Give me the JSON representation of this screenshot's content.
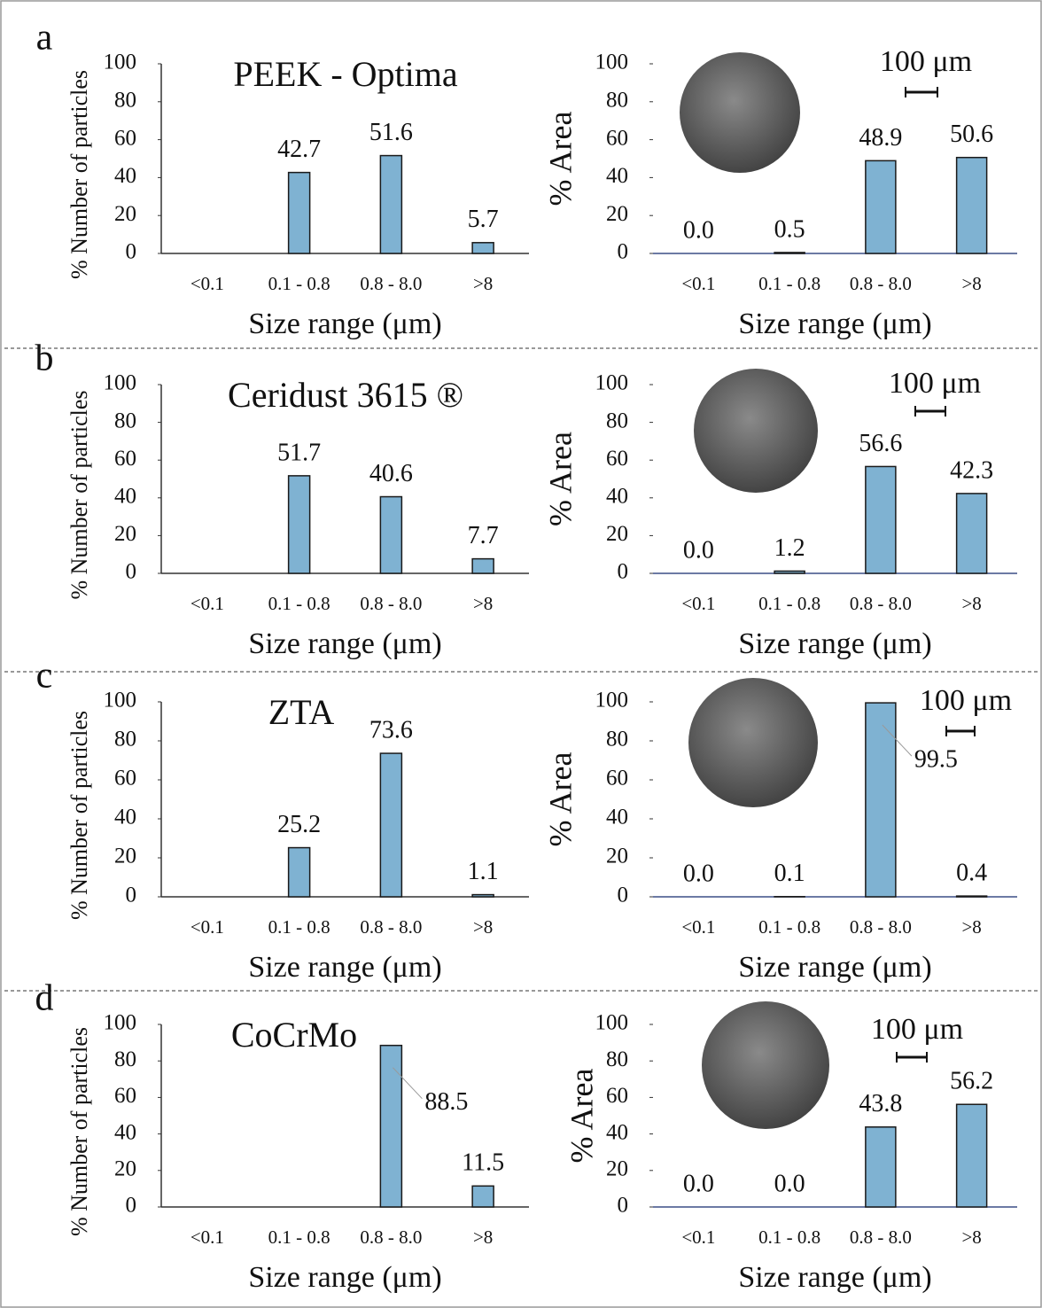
{
  "chart_data": [
    {
      "type": "bar",
      "panel_label": "a",
      "title": "PEEK - Optima",
      "y_label": "% Number of particles",
      "x_label": "Size range (μm)",
      "categories": [
        "<0.1",
        "0.1 - 0.8",
        "0.8 - 8.0",
        ">8"
      ],
      "values": [
        0,
        42.7,
        51.6,
        5.7
      ],
      "value_labels": [
        null,
        "42.7",
        "51.6",
        "5.7"
      ],
      "ylim": [
        0,
        100
      ],
      "yticks": [
        0,
        20,
        40,
        60,
        80,
        100
      ],
      "color": "#7fb2d2"
    },
    {
      "type": "bar",
      "y_label": "% Area",
      "x_label": "Size range (μm)",
      "scale_bar_label": "100 μm",
      "categories": [
        "<0.1",
        "0.1 - 0.8",
        "0.8 - 8.0",
        ">8"
      ],
      "values": [
        0,
        0.5,
        48.9,
        50.6
      ],
      "value_labels": [
        "0.0",
        "0.5",
        "48.9",
        "50.6"
      ],
      "ylim": [
        0,
        100
      ],
      "yticks": [
        0,
        20,
        40,
        60,
        80,
        100
      ],
      "color": "#7fb2d2"
    },
    {
      "type": "bar",
      "panel_label": "b",
      "title": "Ceridust 3615 ®",
      "y_label": "% Number of particles",
      "x_label": "Size range (μm)",
      "categories": [
        "<0.1",
        "0.1 - 0.8",
        "0.8 - 8.0",
        ">8"
      ],
      "values": [
        0,
        51.7,
        40.6,
        7.7
      ],
      "value_labels": [
        null,
        "51.7",
        "40.6",
        "7.7"
      ],
      "ylim": [
        0,
        100
      ],
      "yticks": [
        0,
        20,
        40,
        60,
        80,
        100
      ],
      "color": "#7fb2d2"
    },
    {
      "type": "bar",
      "y_label": "% Area",
      "x_label": "Size range (μm)",
      "scale_bar_label": "100 μm",
      "categories": [
        "<0.1",
        "0.1 - 0.8",
        "0.8 - 8.0",
        ">8"
      ],
      "values": [
        0,
        1.2,
        56.6,
        42.3
      ],
      "value_labels": [
        "0.0",
        "1.2",
        "56.6",
        "42.3"
      ],
      "ylim": [
        0,
        100
      ],
      "yticks": [
        0,
        20,
        40,
        60,
        80,
        100
      ],
      "color": "#7fb2d2"
    },
    {
      "type": "bar",
      "panel_label": "c",
      "title": "ZTA",
      "y_label": "% Number of particles",
      "x_label": "Size range (μm)",
      "categories": [
        "<0.1",
        "0.1 - 0.8",
        "0.8 - 8.0",
        ">8"
      ],
      "values": [
        0,
        25.2,
        73.6,
        1.1
      ],
      "value_labels": [
        null,
        "25.2",
        "73.6",
        "1.1"
      ],
      "ylim": [
        0,
        100
      ],
      "yticks": [
        0,
        20,
        40,
        60,
        80,
        100
      ],
      "color": "#7fb2d2"
    },
    {
      "type": "bar",
      "y_label": "% Area",
      "x_label": "Size range (μm)",
      "scale_bar_label": "100 μm",
      "categories": [
        "<0.1",
        "0.1 - 0.8",
        "0.8 - 8.0",
        ">8"
      ],
      "values": [
        0,
        0.1,
        99.5,
        0.4
      ],
      "value_labels": [
        "0.0",
        "0.1",
        "99.5",
        "0.4"
      ],
      "ylim": [
        0,
        100
      ],
      "yticks": [
        0,
        20,
        40,
        60,
        80,
        100
      ],
      "color": "#7fb2d2"
    },
    {
      "type": "bar",
      "panel_label": "d",
      "title": "CoCrMo",
      "y_label": "% Number of particles",
      "x_label": "Size range (μm)",
      "categories": [
        "<0.1",
        "0.1 - 0.8",
        "0.8 - 8.0",
        ">8"
      ],
      "values": [
        0,
        0,
        88.5,
        11.5
      ],
      "value_labels": [
        null,
        null,
        "88.5",
        "11.5"
      ],
      "ylim": [
        0,
        100
      ],
      "yticks": [
        0,
        20,
        40,
        60,
        80,
        100
      ],
      "color": "#7fb2d2"
    },
    {
      "type": "bar",
      "y_label": "% Area",
      "x_label": "Size range (μm)",
      "scale_bar_label": "100 μm",
      "categories": [
        "<0.1",
        "0.1 - 0.8",
        "0.8 - 8.0",
        ">8"
      ],
      "values": [
        0,
        0,
        43.8,
        56.2
      ],
      "value_labels": [
        "0.0",
        "0.0",
        "43.8",
        "56.2"
      ],
      "ylim": [
        0,
        100
      ],
      "yticks": [
        0,
        20,
        40,
        60,
        80,
        100
      ],
      "color": "#7fb2d2"
    }
  ]
}
